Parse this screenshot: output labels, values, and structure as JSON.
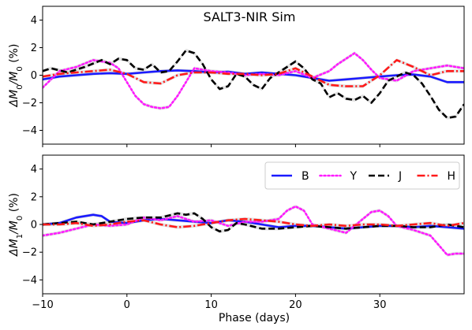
{
  "figure": {
    "xlabel": "Phase (days)"
  },
  "legend": {
    "placement": "top-right of lower panel",
    "entries": [
      {
        "label": "B",
        "color": "#1a1aff",
        "style": "solid"
      },
      {
        "label": "Y",
        "color": "#ff1aff",
        "style": "dotted"
      },
      {
        "label": "J",
        "color": "#000000",
        "style": "dashed"
      },
      {
        "label": "H",
        "color": "#ff1a1a",
        "style": "dashdot"
      }
    ]
  },
  "chart_data": [
    {
      "type": "line",
      "title": "SALT3-NIR Sim",
      "xlabel": "",
      "ylabel_main": "ΔM",
      "ylabel_sub": "0",
      "ylabel_mid": "/M",
      "ylabel_sub2": "0",
      "ylabel_tail": " (%)",
      "xlim": [
        -10,
        40
      ],
      "ylim": [
        -5,
        5
      ],
      "xticks": [
        -10,
        0,
        10,
        20,
        30
      ],
      "yticks": [
        -4,
        -2,
        0,
        2,
        4
      ],
      "grid": false,
      "series": [
        {
          "name": "B",
          "color": "#1a1aff",
          "dash": "",
          "x": [
            -10,
            -8,
            -6,
            -4,
            -2,
            0,
            2,
            4,
            6,
            8,
            10,
            12,
            14,
            16,
            18,
            20,
            22,
            24,
            26,
            28,
            30,
            32,
            34,
            36,
            38,
            40
          ],
          "y": [
            -0.3,
            -0.1,
            0.0,
            0.1,
            0.15,
            0.1,
            0.2,
            0.3,
            0.35,
            0.3,
            0.2,
            0.25,
            0.1,
            0.2,
            0.1,
            0.0,
            -0.2,
            -0.4,
            -0.3,
            -0.2,
            -0.1,
            0.0,
            0.05,
            -0.1,
            -0.5,
            -0.5
          ]
        },
        {
          "name": "Y",
          "color": "#ff1aff",
          "dash": "2,3",
          "x": [
            -10,
            -9,
            -8,
            -6,
            -4,
            -2,
            -1,
            0,
            1,
            2,
            3,
            4,
            5,
            6,
            7,
            8,
            10,
            12,
            14,
            16,
            18,
            20,
            22,
            24,
            25,
            26,
            27,
            28,
            29,
            30,
            32,
            34,
            36,
            38,
            40
          ],
          "y": [
            -0.9,
            -0.3,
            0.3,
            0.6,
            1.1,
            0.9,
            0.5,
            -0.5,
            -1.5,
            -2.1,
            -2.3,
            -2.4,
            -2.3,
            -1.5,
            -0.5,
            0.5,
            0.3,
            0.2,
            0.0,
            0.1,
            0.0,
            0.3,
            -0.2,
            0.3,
            0.8,
            1.2,
            1.6,
            1.1,
            0.4,
            -0.2,
            -0.4,
            0.3,
            0.5,
            0.7,
            0.5
          ]
        },
        {
          "name": "J",
          "color": "#000000",
          "dash": "8,4",
          "x": [
            -10,
            -9,
            -7,
            -5,
            -3,
            -2,
            -1,
            0,
            1,
            2,
            3,
            4,
            5,
            6,
            7,
            8,
            9,
            10,
            11,
            12,
            13,
            14,
            15,
            16,
            17,
            18,
            19,
            20,
            21,
            22,
            23,
            24,
            25,
            26,
            27,
            28,
            29,
            30,
            31,
            32,
            33,
            34,
            35,
            36,
            37,
            38,
            39,
            40
          ],
          "y": [
            0.3,
            0.5,
            0.2,
            0.6,
            1.1,
            0.8,
            1.2,
            1.1,
            0.5,
            0.4,
            0.8,
            0.2,
            0.3,
            1.0,
            1.8,
            1.6,
            0.8,
            -0.3,
            -1.0,
            -0.8,
            0.1,
            -0.1,
            -0.7,
            -1.0,
            -0.2,
            0.2,
            0.6,
            1.0,
            0.5,
            -0.3,
            -0.6,
            -1.6,
            -1.3,
            -1.7,
            -1.8,
            -1.5,
            -2.0,
            -1.3,
            -0.4,
            -0.1,
            0.2,
            0.0,
            -0.6,
            -1.5,
            -2.5,
            -3.1,
            -3.0,
            -2.1
          ]
        },
        {
          "name": "H",
          "color": "#ff1a1a",
          "dash": "10,3,2,3",
          "x": [
            -10,
            -8,
            -6,
            -4,
            -2,
            0,
            2,
            4,
            6,
            8,
            10,
            12,
            14,
            16,
            18,
            20,
            22,
            24,
            26,
            28,
            30,
            32,
            34,
            36,
            38,
            40
          ],
          "y": [
            -0.1,
            0.1,
            0.2,
            0.3,
            0.4,
            0.1,
            -0.5,
            -0.6,
            0.0,
            0.2,
            0.2,
            0.1,
            0.1,
            0.0,
            0.1,
            0.5,
            -0.1,
            -0.7,
            -0.8,
            -0.8,
            0.0,
            1.1,
            0.6,
            0.0,
            0.3,
            0.3
          ]
        }
      ]
    },
    {
      "type": "line",
      "title": "",
      "xlabel": "Phase (days)",
      "ylabel_main": "ΔM",
      "ylabel_sub": "1",
      "ylabel_mid": "/M",
      "ylabel_sub2": "0",
      "ylabel_tail": " (%)",
      "xlim": [
        -10,
        40
      ],
      "ylim": [
        -5,
        5
      ],
      "xticks": [
        -10,
        0,
        10,
        20,
        30
      ],
      "yticks": [
        -4,
        -2,
        0,
        2,
        4
      ],
      "grid": false,
      "series": [
        {
          "name": "B",
          "color": "#1a1aff",
          "dash": "",
          "x": [
            -10,
            -8,
            -6,
            -4,
            -3,
            -2,
            0,
            2,
            4,
            6,
            8,
            10,
            12,
            14,
            16,
            18,
            20,
            22,
            24,
            26,
            28,
            30,
            32,
            34,
            36,
            38,
            40
          ],
          "y": [
            0.0,
            0.1,
            0.5,
            0.7,
            0.6,
            0.2,
            0.1,
            0.3,
            0.4,
            0.3,
            0.2,
            0.1,
            0.3,
            0.2,
            0.0,
            -0.2,
            -0.1,
            -0.1,
            -0.2,
            -0.3,
            -0.2,
            -0.1,
            -0.1,
            -0.2,
            -0.1,
            -0.2,
            -0.3
          ]
        },
        {
          "name": "Y",
          "color": "#ff1aff",
          "dash": "2,3",
          "x": [
            -10,
            -8,
            -6,
            -4,
            -2,
            0,
            2,
            4,
            6,
            8,
            10,
            12,
            14,
            16,
            18,
            19,
            20,
            21,
            22,
            24,
            26,
            28,
            29,
            30,
            31,
            32,
            34,
            36,
            37,
            38,
            39,
            40
          ],
          "y": [
            -0.8,
            -0.6,
            -0.3,
            0.0,
            -0.1,
            0.0,
            0.5,
            0.3,
            0.6,
            0.2,
            0.3,
            -0.1,
            0.2,
            0.2,
            0.4,
            1.0,
            1.3,
            1.0,
            0.0,
            -0.3,
            -0.6,
            0.4,
            0.9,
            1.0,
            0.6,
            -0.1,
            -0.4,
            -0.8,
            -1.5,
            -2.2,
            -2.1,
            -2.1
          ]
        },
        {
          "name": "J",
          "color": "#000000",
          "dash": "8,4",
          "x": [
            -10,
            -8,
            -6,
            -4,
            -2,
            0,
            2,
            4,
            6,
            7,
            8,
            9,
            10,
            11,
            12,
            13,
            14,
            16,
            18,
            20,
            22,
            24,
            26,
            28,
            30,
            32,
            34,
            36,
            38,
            40
          ],
          "y": [
            0.0,
            0.1,
            0.2,
            0.0,
            0.2,
            0.4,
            0.5,
            0.5,
            0.8,
            0.7,
            0.8,
            0.4,
            -0.2,
            -0.5,
            -0.4,
            0.1,
            0.0,
            -0.3,
            -0.3,
            -0.2,
            -0.1,
            -0.2,
            -0.3,
            -0.2,
            -0.1,
            -0.1,
            -0.2,
            -0.2,
            0.0,
            -0.2
          ]
        },
        {
          "name": "H",
          "color": "#ff1a1a",
          "dash": "10,3,2,3",
          "x": [
            -10,
            -8,
            -6,
            -4,
            -2,
            0,
            2,
            4,
            6,
            8,
            10,
            12,
            14,
            16,
            18,
            20,
            22,
            24,
            26,
            28,
            30,
            32,
            34,
            36,
            38,
            40
          ],
          "y": [
            0.0,
            0.0,
            0.1,
            -0.1,
            0.0,
            0.2,
            0.3,
            0.0,
            -0.2,
            -0.1,
            0.1,
            0.3,
            0.4,
            0.3,
            0.2,
            0.0,
            -0.1,
            0.0,
            -0.1,
            0.0,
            0.0,
            -0.1,
            0.0,
            0.1,
            -0.1,
            0.1
          ]
        }
      ]
    }
  ]
}
